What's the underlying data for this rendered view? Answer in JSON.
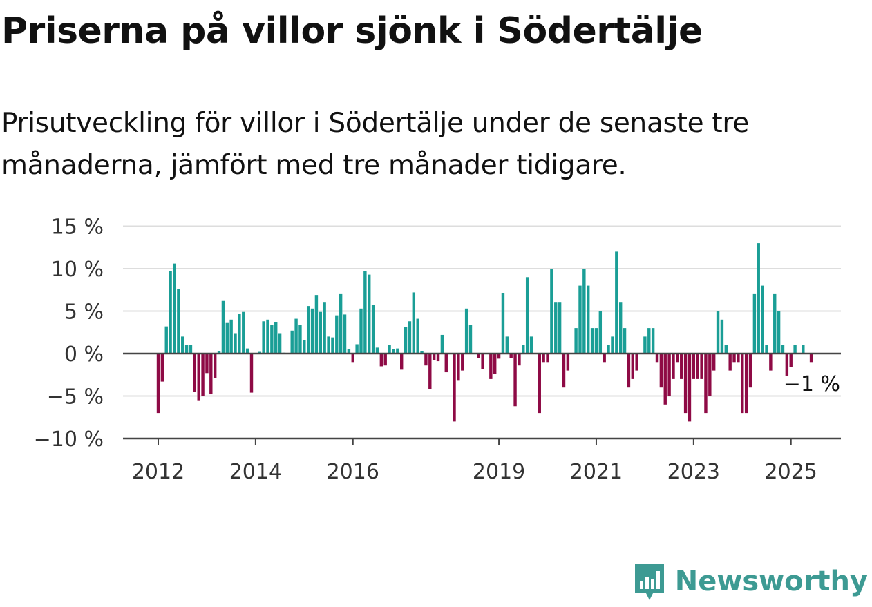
{
  "title": "Priserna på villor sjönk i Södertälje",
  "subtitle": "Prisutveckling för villor i Södertälje under de senaste tre månaderna, jämfört med tre månader tidigare.",
  "brand": "Newsworthy",
  "colors": {
    "positive": "#1a9e96",
    "negative": "#8e0a45",
    "grid": "#dddddd",
    "zero_line": "#444444",
    "brand": "#3d9a93"
  },
  "chart_data": {
    "type": "bar",
    "title": "Priserna på villor sjönk i Södertälje",
    "xlabel": "",
    "ylabel": "",
    "ylim": [
      -10,
      15
    ],
    "y_ticks": [
      15,
      10,
      5,
      0,
      -5,
      -10
    ],
    "y_tick_labels": [
      "15 %",
      "10 %",
      "5 %",
      "0 %",
      "−5 %",
      "−10 %"
    ],
    "x_ticks": [
      {
        "label": "2012",
        "month_index": 0
      },
      {
        "label": "2014",
        "month_index": 24
      },
      {
        "label": "2016",
        "month_index": 48
      },
      {
        "label": "2019",
        "month_index": 84
      },
      {
        "label": "2021",
        "month_index": 108
      },
      {
        "label": "2023",
        "month_index": 132
      },
      {
        "label": "2025",
        "month_index": 156
      }
    ],
    "grid": true,
    "end_label": "−1 %",
    "start_month": "2012-01",
    "values": [
      -7,
      -3.3,
      3.2,
      9.7,
      10.6,
      7.6,
      2,
      1,
      1,
      -4.5,
      -5.5,
      -5,
      -2.3,
      -4.8,
      -2.9,
      0.3,
      6.2,
      3.6,
      4,
      2.4,
      4.7,
      4.9,
      0.6,
      -4.6,
      0,
      0.2,
      3.8,
      4,
      3.4,
      3.7,
      2.4,
      0.1,
      0,
      2.7,
      4.1,
      3.4,
      1.6,
      5.6,
      5.3,
      6.9,
      4.9,
      6,
      2,
      1.9,
      4.5,
      7,
      4.6,
      0.5,
      -1,
      1.1,
      5.3,
      9.7,
      9.3,
      5.7,
      0.7,
      -1.5,
      -1.4,
      1,
      0.5,
      0.6,
      -1.9,
      3.1,
      3.8,
      7.2,
      4.1,
      0.3,
      -1.4,
      -4.2,
      -0.8,
      -0.9,
      2.2,
      -2.2,
      0,
      -8,
      -3.2,
      -2,
      5.3,
      3.4,
      0,
      -0.5,
      -1.8,
      0,
      -3,
      -2.4,
      -0.6,
      7.1,
      2,
      -0.5,
      -6.2,
      -1.4,
      1,
      9,
      2,
      0,
      -7,
      -1,
      -1,
      10,
      6,
      6,
      -4,
      -2,
      0,
      3,
      8,
      10,
      8,
      3,
      3,
      5,
      -1,
      1,
      2,
      12,
      6,
      3,
      -4,
      -3,
      -2,
      0,
      2,
      3,
      3,
      -1,
      -4,
      -6,
      -5,
      -3,
      -1,
      -3,
      -7,
      -8,
      -3,
      -3,
      -3,
      -7,
      -5,
      -2,
      5,
      4,
      1,
      -2,
      -1,
      -1,
      -7,
      -7,
      -4,
      7,
      13,
      8,
      1,
      -2,
      7,
      5,
      1,
      -2.6,
      -1.6,
      1,
      0,
      1,
      0,
      -1
    ]
  }
}
